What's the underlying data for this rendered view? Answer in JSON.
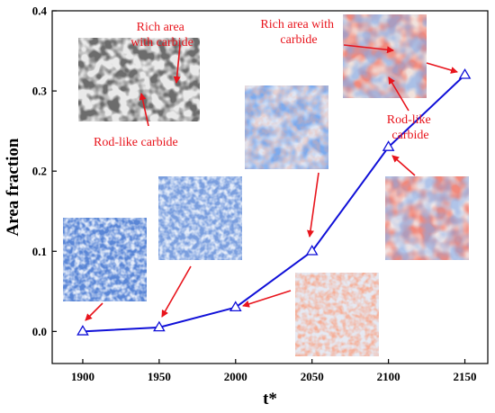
{
  "chart_data": {
    "type": "line",
    "xlabel": "t*",
    "ylabel": "Area fraction",
    "xlim": [
      1880,
      2165
    ],
    "ylim": [
      -0.04,
      0.4
    ],
    "xticks": [
      1900,
      1950,
      2000,
      2050,
      2100,
      2150
    ],
    "yticks": [
      0.0,
      0.1,
      0.2,
      0.3,
      0.4
    ],
    "xtick_labels": [
      "1900",
      "1950",
      "2000",
      "2050",
      "2100",
      "2150"
    ],
    "ytick_labels": [
      "0.0",
      "0.1",
      "0.2",
      "0.3",
      "0.4"
    ],
    "grid": false,
    "series": [
      {
        "x": [
          1900,
          1950,
          2000,
          2050,
          2100,
          2150
        ],
        "values": [
          0.0,
          0.005,
          0.03,
          0.1,
          0.23,
          0.32
        ],
        "color": "#1010d8",
        "marker": "open-triangle"
      }
    ],
    "annotations": [
      {
        "id": "sem",
        "lines": [
          "Rich area",
          "with carbide"
        ]
      },
      {
        "id": "sem2",
        "lines": [
          "Rod-like carbide"
        ]
      },
      {
        "id": "top",
        "lines": [
          "Rich area with",
          "carbide"
        ]
      },
      {
        "id": "rod",
        "lines": [
          "Rod-like",
          "carbide"
        ]
      }
    ],
    "colors": {
      "line": "#1010d8",
      "arrow": "#e8141c",
      "annotation_text": "#e8141c"
    }
  }
}
